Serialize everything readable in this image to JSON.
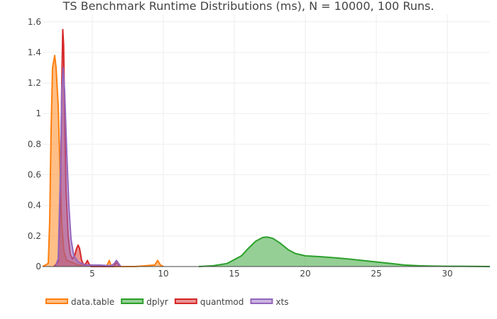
{
  "chart_data": {
    "type": "area",
    "title": "TS Benchmark Runtime Distributions (ms), N = 10000, 100 Runs.",
    "xlabel": "",
    "ylabel": "",
    "xlim": [
      1.5,
      33
    ],
    "ylim": [
      0,
      1.65
    ],
    "x_ticks": [
      "5",
      "10",
      "15",
      "20",
      "25",
      "30"
    ],
    "y_ticks": [
      "0",
      "0.2",
      "0.4",
      "0.6",
      "0.8",
      "1",
      "1.2",
      "1.4",
      "1.6"
    ],
    "grid": true,
    "legend_position": "bottom",
    "series": [
      {
        "name": "data.table",
        "color": "#ff7f0e",
        "points": [
          [
            1.5,
            0
          ],
          [
            1.9,
            0.02
          ],
          [
            2.0,
            0.3
          ],
          [
            2.1,
            0.9
          ],
          [
            2.2,
            1.3
          ],
          [
            2.35,
            1.38
          ],
          [
            2.45,
            1.3
          ],
          [
            2.6,
            1.05
          ],
          [
            2.75,
            0.55
          ],
          [
            2.85,
            0.28
          ],
          [
            3.0,
            0.1
          ],
          [
            3.2,
            0.04
          ],
          [
            3.5,
            0.03
          ],
          [
            4.0,
            0.01
          ],
          [
            5.0,
            0.01
          ],
          [
            6.0,
            0.0
          ],
          [
            6.1,
            0.02
          ],
          [
            6.2,
            0.04
          ],
          [
            6.3,
            0.01
          ],
          [
            6.5,
            0.0
          ],
          [
            8.0,
            0.0
          ],
          [
            9.4,
            0.01
          ],
          [
            9.6,
            0.04
          ],
          [
            9.8,
            0.01
          ],
          [
            10.0,
            0.0
          ]
        ]
      },
      {
        "name": "dplyr",
        "color": "#2ca02c",
        "points": [
          [
            12.5,
            0
          ],
          [
            13.5,
            0.005
          ],
          [
            14.5,
            0.02
          ],
          [
            15.5,
            0.07
          ],
          [
            16.0,
            0.12
          ],
          [
            16.5,
            0.165
          ],
          [
            17.0,
            0.19
          ],
          [
            17.3,
            0.193
          ],
          [
            17.7,
            0.185
          ],
          [
            18.2,
            0.155
          ],
          [
            18.8,
            0.11
          ],
          [
            19.3,
            0.085
          ],
          [
            20.0,
            0.07
          ],
          [
            21.0,
            0.065
          ],
          [
            22.0,
            0.058
          ],
          [
            23.0,
            0.05
          ],
          [
            24.0,
            0.04
          ],
          [
            25.0,
            0.03
          ],
          [
            26.0,
            0.02
          ],
          [
            27.0,
            0.01
          ],
          [
            28.0,
            0.005
          ],
          [
            29.0,
            0.003
          ],
          [
            30.0,
            0.002
          ],
          [
            31.0,
            0.002
          ],
          [
            33.0,
            0.0
          ]
        ]
      },
      {
        "name": "quantmod",
        "color": "#d62728",
        "points": [
          [
            2.3,
            0
          ],
          [
            2.6,
            0.03
          ],
          [
            2.75,
            0.4
          ],
          [
            2.85,
            1.2
          ],
          [
            2.92,
            1.55
          ],
          [
            2.98,
            1.45
          ],
          [
            3.05,
            1.0
          ],
          [
            3.15,
            0.5
          ],
          [
            3.3,
            0.2
          ],
          [
            3.45,
            0.08
          ],
          [
            3.6,
            0.05
          ],
          [
            3.75,
            0.07
          ],
          [
            3.9,
            0.12
          ],
          [
            4.0,
            0.14
          ],
          [
            4.1,
            0.12
          ],
          [
            4.25,
            0.04
          ],
          [
            4.4,
            0.01
          ],
          [
            4.55,
            0.02
          ],
          [
            4.65,
            0.04
          ],
          [
            4.75,
            0.02
          ],
          [
            4.9,
            0.0
          ],
          [
            6.5,
            0.0
          ],
          [
            6.65,
            0.02
          ],
          [
            6.75,
            0.03
          ],
          [
            6.85,
            0.01
          ],
          [
            7.0,
            0.0
          ]
        ]
      },
      {
        "name": "xts",
        "color": "#9467bd",
        "points": [
          [
            2.4,
            0
          ],
          [
            2.6,
            0.05
          ],
          [
            2.75,
            0.6
          ],
          [
            2.85,
            1.15
          ],
          [
            2.95,
            1.3
          ],
          [
            3.05,
            1.15
          ],
          [
            3.2,
            0.75
          ],
          [
            3.35,
            0.4
          ],
          [
            3.5,
            0.18
          ],
          [
            3.7,
            0.07
          ],
          [
            4.0,
            0.03
          ],
          [
            4.5,
            0.01
          ],
          [
            5.5,
            0.01
          ],
          [
            6.3,
            0.005
          ],
          [
            6.55,
            0.02
          ],
          [
            6.7,
            0.04
          ],
          [
            6.85,
            0.02
          ],
          [
            7.0,
            0.0
          ]
        ]
      }
    ]
  }
}
